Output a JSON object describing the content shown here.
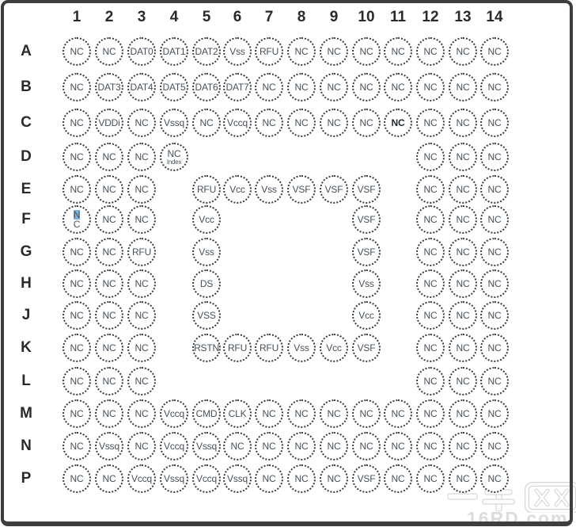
{
  "diagram": {
    "columns": [
      "1",
      "2",
      "3",
      "4",
      "5",
      "6",
      "7",
      "8",
      "9",
      "10",
      "11",
      "12",
      "13",
      "14"
    ],
    "rows": [
      {
        "letter": "A",
        "balls": [
          [
            1,
            "NC"
          ],
          [
            2,
            "NC"
          ],
          [
            3,
            "DAT0"
          ],
          [
            4,
            "DAT1"
          ],
          [
            5,
            "DAT2"
          ],
          [
            6,
            "Vss"
          ],
          [
            7,
            "RFU"
          ],
          [
            8,
            "NC"
          ],
          [
            9,
            "NC"
          ],
          [
            10,
            "NC"
          ],
          [
            11,
            "NC"
          ],
          [
            12,
            "NC"
          ],
          [
            13,
            "NC"
          ],
          [
            14,
            "NC"
          ]
        ]
      },
      {
        "letter": "B",
        "balls": [
          [
            1,
            "NC"
          ],
          [
            2,
            "DAT3"
          ],
          [
            3,
            "DAT4"
          ],
          [
            4,
            "DAT5"
          ],
          [
            5,
            "DAT6"
          ],
          [
            6,
            "DAT7"
          ],
          [
            7,
            "NC"
          ],
          [
            8,
            "NC"
          ],
          [
            9,
            "NC"
          ],
          [
            10,
            "NC"
          ],
          [
            11,
            "NC"
          ],
          [
            12,
            "NC"
          ],
          [
            13,
            "NC"
          ],
          [
            14,
            "NC"
          ]
        ]
      },
      {
        "letter": "C",
        "balls": [
          [
            1,
            "NC"
          ],
          [
            2,
            "VDDi"
          ],
          [
            3,
            "NC"
          ],
          [
            4,
            "Vssq"
          ],
          [
            5,
            "NC"
          ],
          [
            6,
            "Vccq"
          ],
          [
            7,
            "NC"
          ],
          [
            8,
            "NC"
          ],
          [
            9,
            "NC"
          ],
          [
            10,
            "NC"
          ],
          {
            "col": 11,
            "label": "NC",
            "bold": true
          },
          [
            12,
            "NC"
          ],
          [
            13,
            "NC"
          ],
          [
            14,
            "NC"
          ]
        ]
      },
      {
        "letter": "D",
        "balls": [
          [
            1,
            "NC"
          ],
          [
            2,
            "NC"
          ],
          [
            3,
            "NC"
          ],
          {
            "col": 4,
            "label": "NC",
            "sub": "Index"
          },
          [
            12,
            "NC"
          ],
          [
            13,
            "NC"
          ],
          [
            14,
            "NC"
          ]
        ]
      },
      {
        "letter": "E",
        "balls": [
          [
            1,
            "NC"
          ],
          [
            2,
            "NC"
          ],
          [
            3,
            "NC"
          ],
          [
            5,
            "RFU"
          ],
          [
            6,
            "Vcc"
          ],
          [
            7,
            "Vss"
          ],
          [
            8,
            "VSF"
          ],
          [
            9,
            "VSF"
          ],
          [
            10,
            "VSF"
          ],
          [
            12,
            "NC"
          ],
          [
            13,
            "NC"
          ],
          [
            14,
            "NC"
          ]
        ]
      },
      {
        "letter": "F",
        "balls": [
          {
            "col": 1,
            "label": "NC",
            "selected_first_char": true
          },
          [
            2,
            "NC"
          ],
          [
            3,
            "NC"
          ],
          [
            5,
            "Vcc"
          ],
          [
            10,
            "VSF"
          ],
          [
            12,
            "NC"
          ],
          [
            13,
            "NC"
          ],
          [
            14,
            "NC"
          ]
        ]
      },
      {
        "letter": "G",
        "balls": [
          [
            1,
            "NC"
          ],
          [
            2,
            "NC"
          ],
          [
            3,
            "RFU"
          ],
          [
            5,
            "Vss"
          ],
          [
            10,
            "VSF"
          ],
          [
            12,
            "NC"
          ],
          [
            13,
            "NC"
          ],
          [
            14,
            "NC"
          ]
        ]
      },
      {
        "letter": "H",
        "balls": [
          [
            1,
            "NC"
          ],
          [
            2,
            "NC"
          ],
          [
            3,
            "NC"
          ],
          [
            5,
            "DS"
          ],
          [
            10,
            "Vss"
          ],
          [
            12,
            "NC"
          ],
          [
            13,
            "NC"
          ],
          [
            14,
            "NC"
          ]
        ]
      },
      {
        "letter": "J",
        "balls": [
          [
            1,
            "NC"
          ],
          [
            2,
            "NC"
          ],
          [
            3,
            "NC"
          ],
          [
            5,
            "VSS"
          ],
          [
            10,
            "Vcc"
          ],
          [
            12,
            "NC"
          ],
          [
            13,
            "NC"
          ],
          [
            14,
            "NC"
          ]
        ]
      },
      {
        "letter": "K",
        "balls": [
          [
            1,
            "NC"
          ],
          [
            2,
            "NC"
          ],
          [
            3,
            "NC"
          ],
          [
            5,
            "RSTN"
          ],
          [
            6,
            "RFU"
          ],
          [
            7,
            "RFU"
          ],
          [
            8,
            "Vss"
          ],
          [
            9,
            "Vcc"
          ],
          [
            10,
            "VSF"
          ],
          [
            12,
            "NC"
          ],
          [
            13,
            "NC"
          ],
          [
            14,
            "NC"
          ]
        ]
      },
      {
        "letter": "L",
        "balls": [
          [
            1,
            "NC"
          ],
          [
            2,
            "NC"
          ],
          [
            3,
            "NC"
          ],
          [
            12,
            "NC"
          ],
          [
            13,
            "NC"
          ],
          [
            14,
            "NC"
          ]
        ]
      },
      {
        "letter": "M",
        "balls": [
          [
            1,
            "NC"
          ],
          [
            2,
            "NC"
          ],
          [
            3,
            "NC"
          ],
          [
            4,
            "Vccq"
          ],
          [
            5,
            "CMD"
          ],
          [
            6,
            "CLK"
          ],
          [
            7,
            "NC"
          ],
          [
            8,
            "NC"
          ],
          [
            9,
            "NC"
          ],
          [
            10,
            "NC"
          ],
          [
            11,
            "NC"
          ],
          [
            12,
            "NC"
          ],
          [
            13,
            "NC"
          ],
          [
            14,
            "NC"
          ]
        ]
      },
      {
        "letter": "N",
        "balls": [
          [
            1,
            "NC"
          ],
          [
            2,
            "Vssq"
          ],
          [
            3,
            "NC"
          ],
          [
            4,
            "Vccq"
          ],
          [
            5,
            "Vssq"
          ],
          [
            6,
            "NC"
          ],
          [
            7,
            "NC"
          ],
          [
            8,
            "NC"
          ],
          [
            9,
            "NC"
          ],
          [
            10,
            "NC"
          ],
          [
            11,
            "NC"
          ],
          [
            12,
            "NC"
          ],
          [
            13,
            "NC"
          ],
          [
            14,
            "NC"
          ]
        ]
      },
      {
        "letter": "P",
        "balls": [
          [
            1,
            "NC"
          ],
          [
            2,
            "NC"
          ],
          [
            3,
            "Vccq"
          ],
          [
            4,
            "Vssq"
          ],
          [
            5,
            "Vccq"
          ],
          [
            6,
            "Vssq"
          ],
          [
            7,
            "NC"
          ],
          [
            8,
            "NC"
          ],
          [
            9,
            "NC"
          ],
          [
            10,
            "VSF"
          ],
          [
            11,
            "NC"
          ],
          [
            12,
            "NC"
          ],
          [
            13,
            "NC"
          ],
          [
            14,
            "NC"
          ]
        ]
      }
    ]
  },
  "watermark": {
    "site_name": "一牛网",
    "site_url": "16RD.com"
  },
  "colors": {
    "frame_border": "#3e3e3e",
    "ball_outline": "#3a3a3a",
    "ball_text": "#47505b",
    "header_text": "#2a2a2a",
    "selection_highlight": "#7fb1da",
    "watermark_gray": "#dcdcdc"
  }
}
